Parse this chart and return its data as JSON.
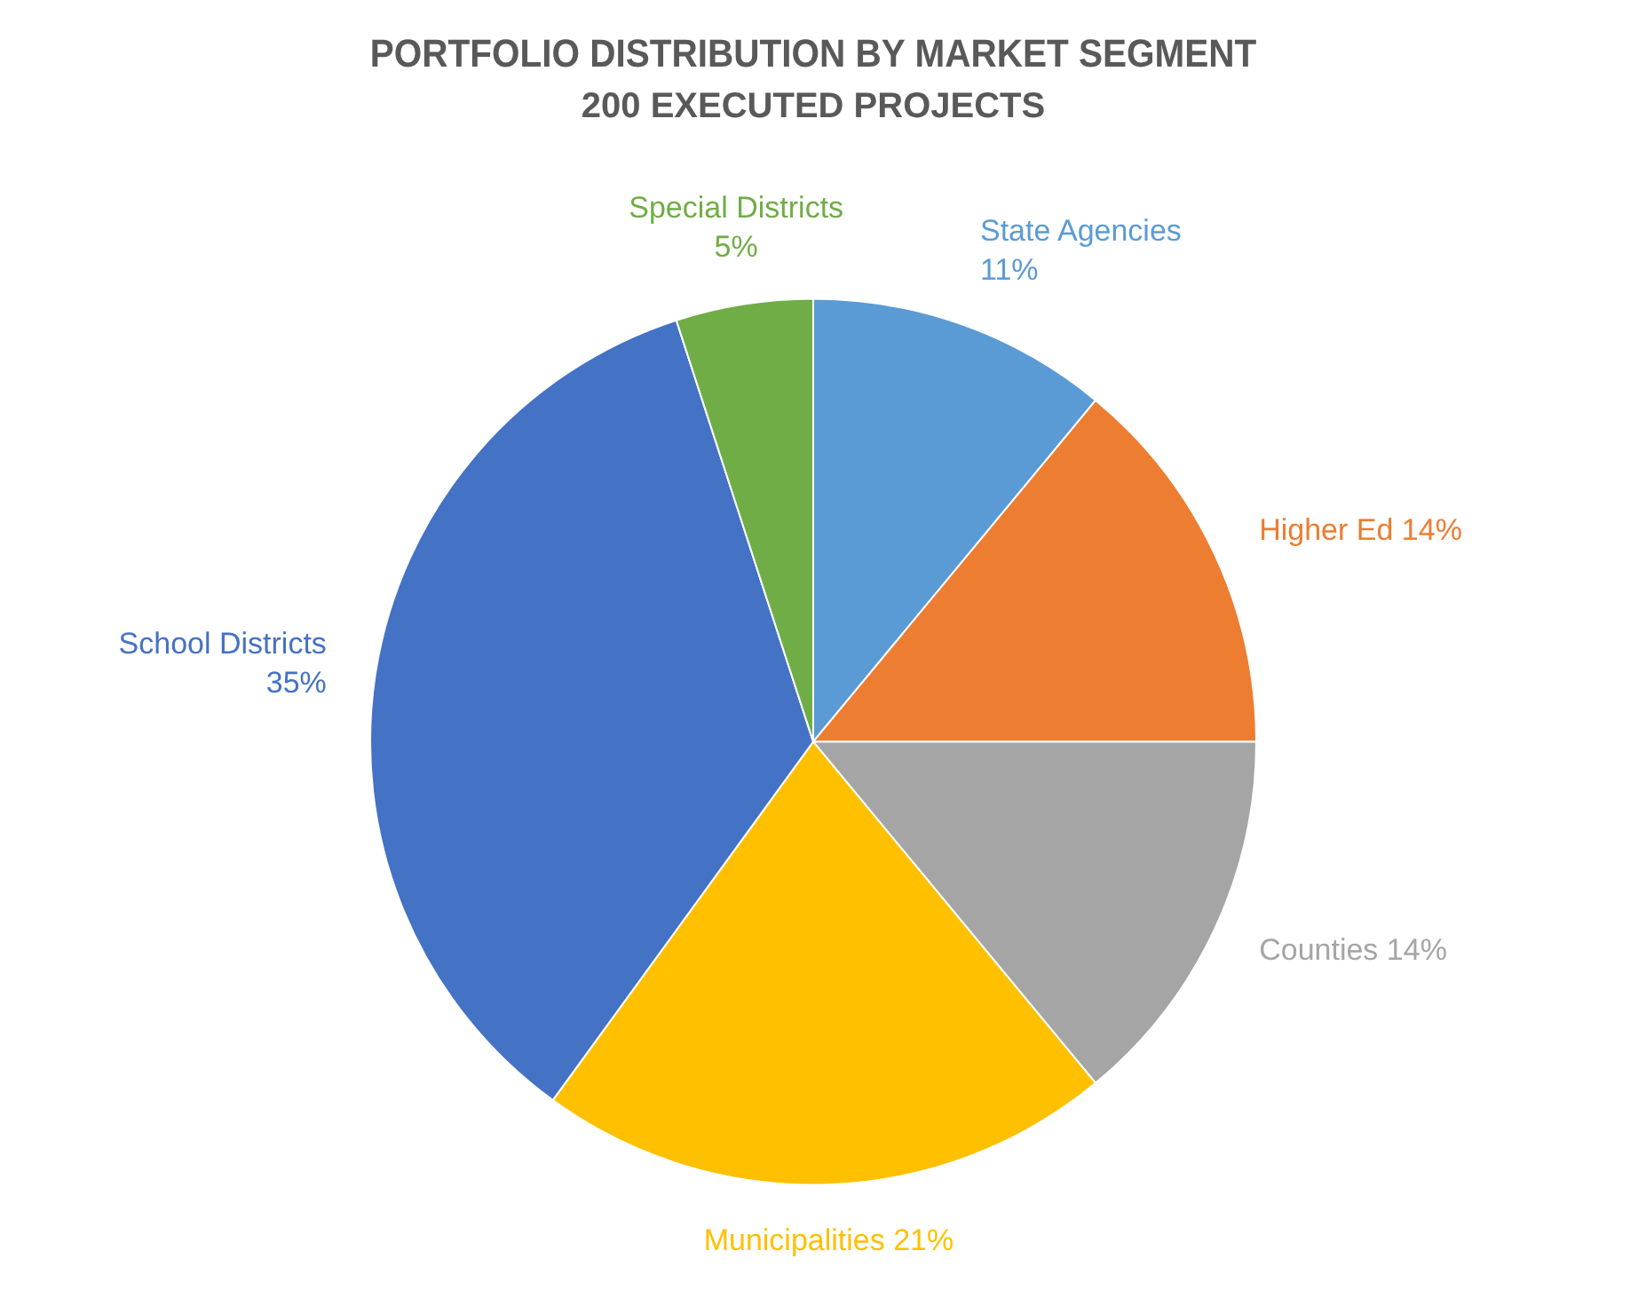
{
  "chart_data": {
    "type": "pie",
    "title": "PORTFOLIO DISTRIBUTION BY MARKET SEGMENT",
    "subtitle": "200 EXECUTED PROJECTS",
    "categories": [
      "State Agencies",
      "Higher Ed",
      "Counties",
      "Municipalities",
      "School Districts",
      "Special Districts"
    ],
    "values": [
      11,
      14,
      14,
      21,
      35,
      5
    ],
    "colors": [
      "#5b9bd5",
      "#ed7d31",
      "#a5a5a5",
      "#ffc000",
      "#4472c4",
      "#70ad47"
    ],
    "value_labels": [
      "11%",
      "14%",
      "14%",
      "21%",
      "35%",
      "5%"
    ],
    "legend": false
  }
}
